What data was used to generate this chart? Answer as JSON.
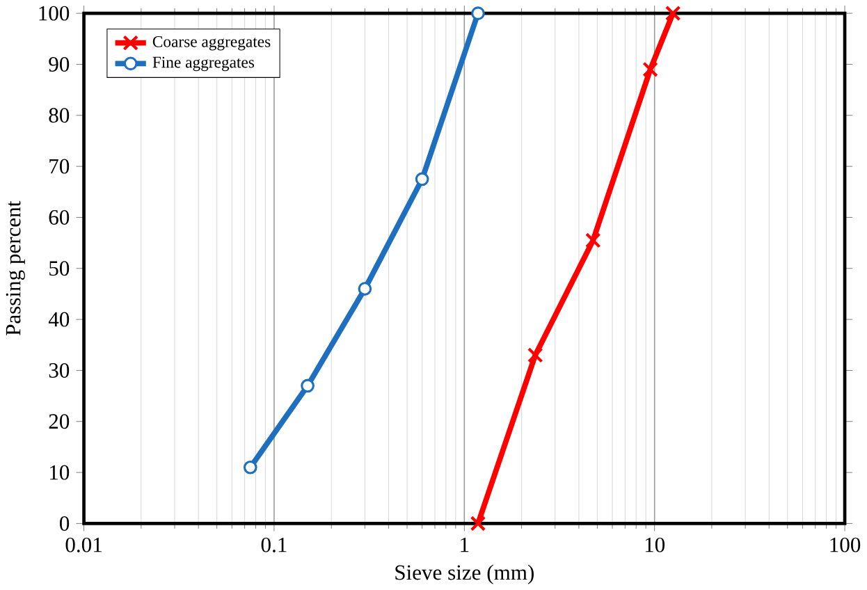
{
  "chart_data": {
    "type": "line",
    "xlabel": "Sieve size (mm)",
    "ylabel": "Passing  percent",
    "log": "x",
    "grid": "x",
    "legend": "top left",
    "line_style": "solid",
    "xlim": [
      0.01,
      100
    ],
    "xticks": [
      0.01,
      0.1,
      1,
      10,
      100
    ],
    "ylim": [
      0,
      100
    ],
    "yticks": [
      0,
      10,
      20,
      30,
      40,
      50,
      60,
      70,
      80,
      90,
      100
    ],
    "series": [
      {
        "name": "Coarse aggregates",
        "color": "#ff0000",
        "marker": "cross",
        "x": [
          1.18,
          2.36,
          4.75,
          9.5,
          12.5
        ],
        "values": [
          0,
          33,
          55.5,
          89,
          100
        ]
      },
      {
        "name": "Fine aggregates",
        "color": "#1f6fbf",
        "marker": "circle",
        "x": [
          0.075,
          0.15,
          0.3,
          0.6,
          1.18
        ],
        "values": [
          11,
          27,
          46,
          67.5,
          100
        ]
      }
    ]
  }
}
